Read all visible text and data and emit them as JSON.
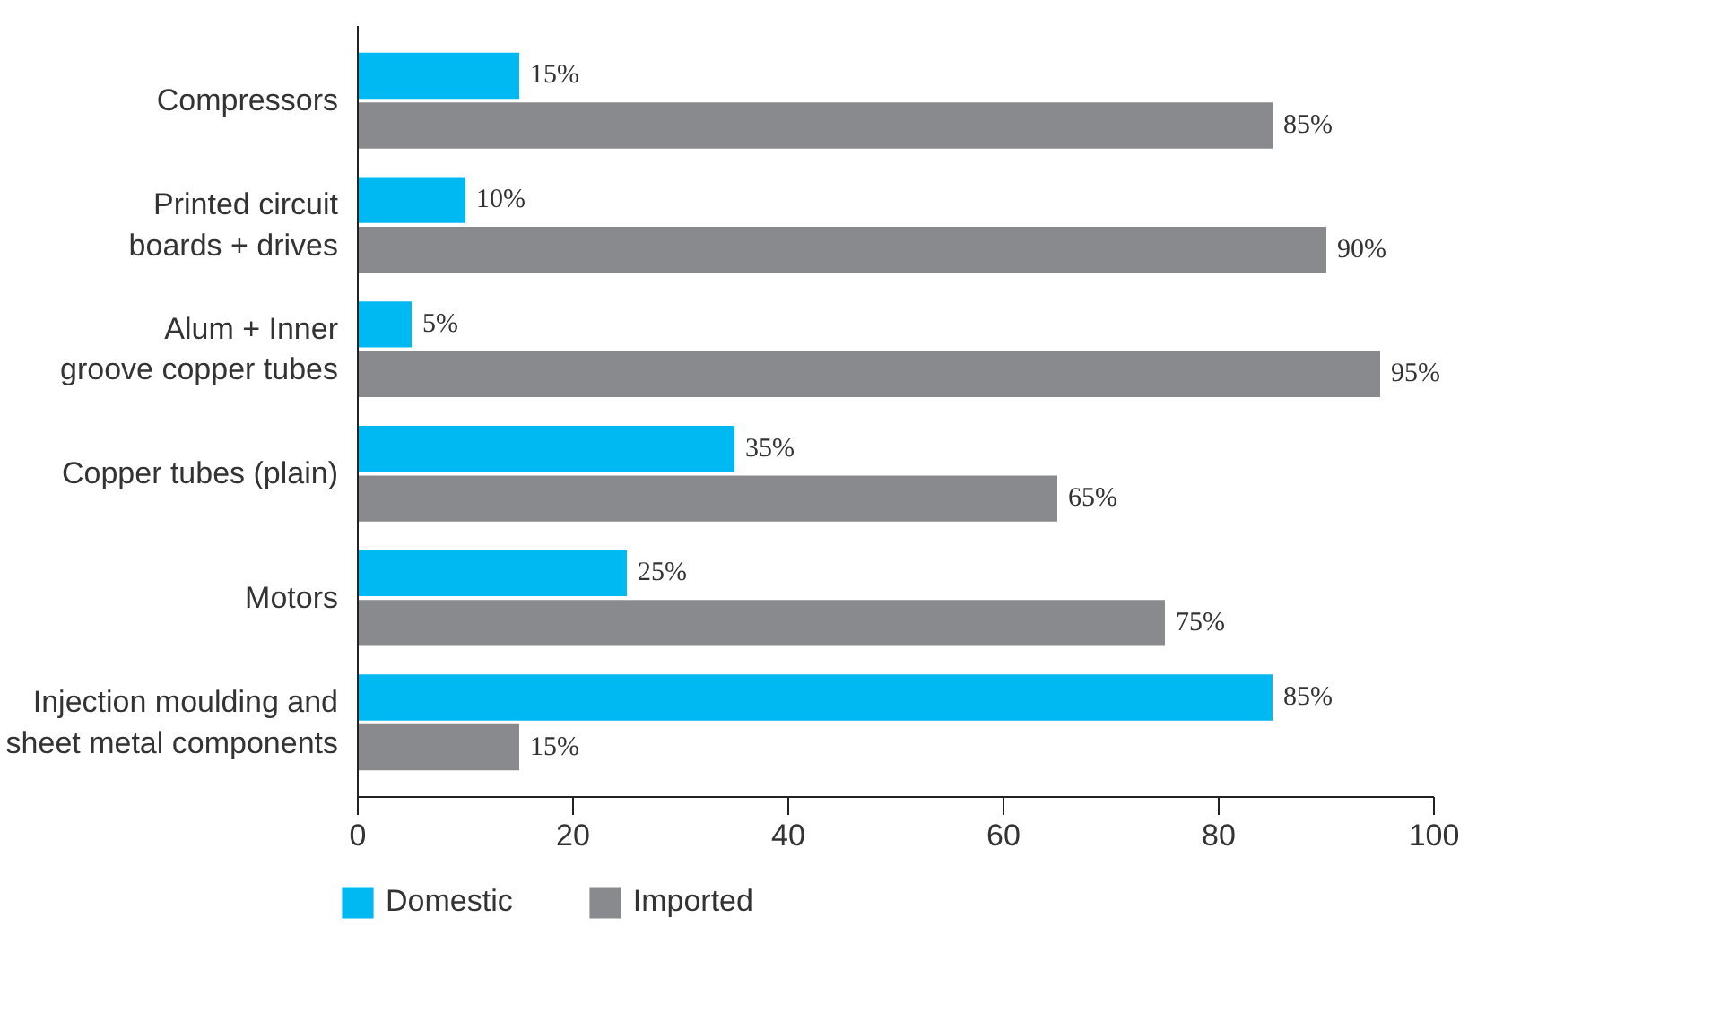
{
  "chart_data": {
    "type": "bar",
    "orientation": "horizontal",
    "categories": [
      "Compressors",
      "Printed circuit boards + drives",
      "Alum + Inner groove copper tubes",
      "Copper tubes (plain)",
      "Motors",
      "Injection moulding and sheet metal components"
    ],
    "series": [
      {
        "name": "Domestic",
        "color": "#00b9f2",
        "values": [
          15,
          10,
          5,
          35,
          25,
          85
        ],
        "value_labels": [
          "15%",
          "10%",
          "5%",
          "35%",
          "25%",
          "85%"
        ]
      },
      {
        "name": "Imported",
        "color": "#898a8d",
        "values": [
          85,
          90,
          95,
          65,
          75,
          15
        ],
        "value_labels": [
          "85%",
          "90%",
          "95%",
          "65%",
          "75%",
          "15%"
        ]
      }
    ],
    "xlim": [
      0,
      100
    ],
    "xticks": [
      0,
      20,
      40,
      60,
      80,
      100
    ],
    "grid": false,
    "legend": "bottom"
  }
}
